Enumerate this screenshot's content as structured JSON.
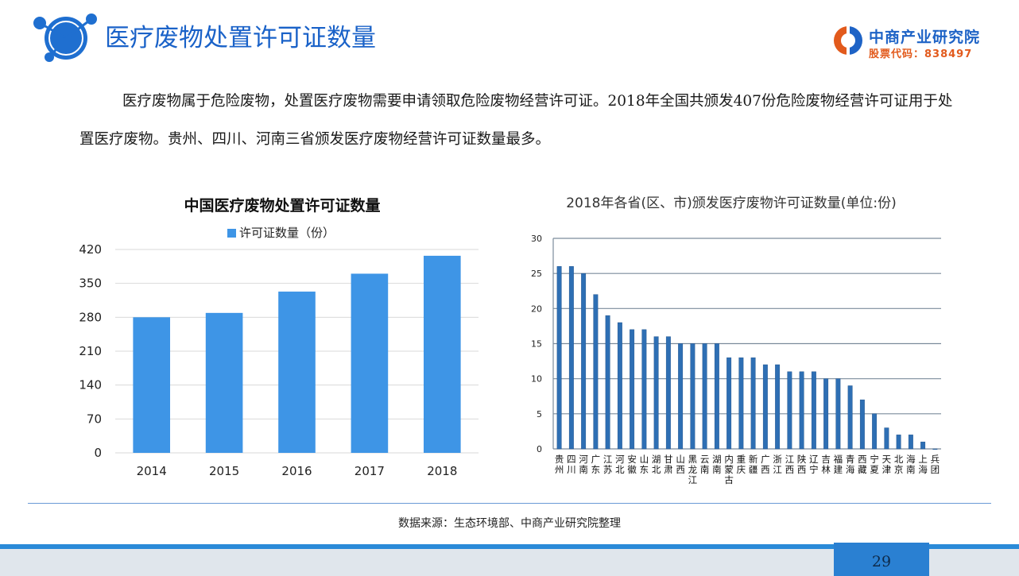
{
  "header": {
    "title": "医疗废物处置许可证数量",
    "brand_name": "中商产业研究院",
    "stock_code": "股票代码：838497"
  },
  "intro": {
    "text": "医疗废物属于危险废物，处置医疗废物需要申请领取危险废物经营许可证。2018年全国共颁发407份危险废物经营许可证用于处置医疗废物。贵州、四川、河南三省颁发医疗废物经营许可证数量最多。"
  },
  "chart_data": [
    {
      "type": "bar",
      "title": "中国医疗废物处置许可证数量",
      "categories": [
        "2014",
        "2015",
        "2016",
        "2017",
        "2018"
      ],
      "series": [
        {
          "name": "许可证数量（份）",
          "values": [
            280,
            289,
            333,
            370,
            407
          ]
        }
      ],
      "yticks": [
        "0",
        "70",
        "140",
        "210",
        "280",
        "350",
        "420"
      ],
      "ylim": [
        0,
        420
      ],
      "legend": "top",
      "grid": true,
      "color": "#3e95e6"
    },
    {
      "type": "bar",
      "title": "2018年各省(区、市)颁发医疗废物许可证数量(单位:份)",
      "categories": [
        "贵州",
        "四川",
        "河南",
        "广东",
        "江苏",
        "河北",
        "安徽",
        "山东",
        "湖北",
        "甘肃",
        "山西",
        "黑龙江",
        "云南",
        "湖南",
        "内蒙古",
        "重庆",
        "新疆",
        "广西",
        "浙江",
        "江西",
        "陕西",
        "辽宁",
        "吉林",
        "福建",
        "青海",
        "西藏",
        "宁夏",
        "天津",
        "北京",
        "海南",
        "上海",
        "兵团"
      ],
      "values": [
        26,
        26,
        25,
        22,
        19,
        18,
        17,
        17,
        16,
        16,
        15,
        15,
        15,
        15,
        13,
        13,
        13,
        12,
        12,
        11,
        11,
        11,
        10,
        10,
        9,
        7,
        5,
        3,
        2,
        2,
        1,
        0
      ],
      "yticks": [
        "0",
        "5",
        "10",
        "15",
        "20",
        "25",
        "30"
      ],
      "ylim": [
        0,
        30
      ],
      "grid": true,
      "color": "#2e6fb4"
    }
  ],
  "source": "数据来源：生态环境部、中商产业研究院整理",
  "page_number": "29"
}
